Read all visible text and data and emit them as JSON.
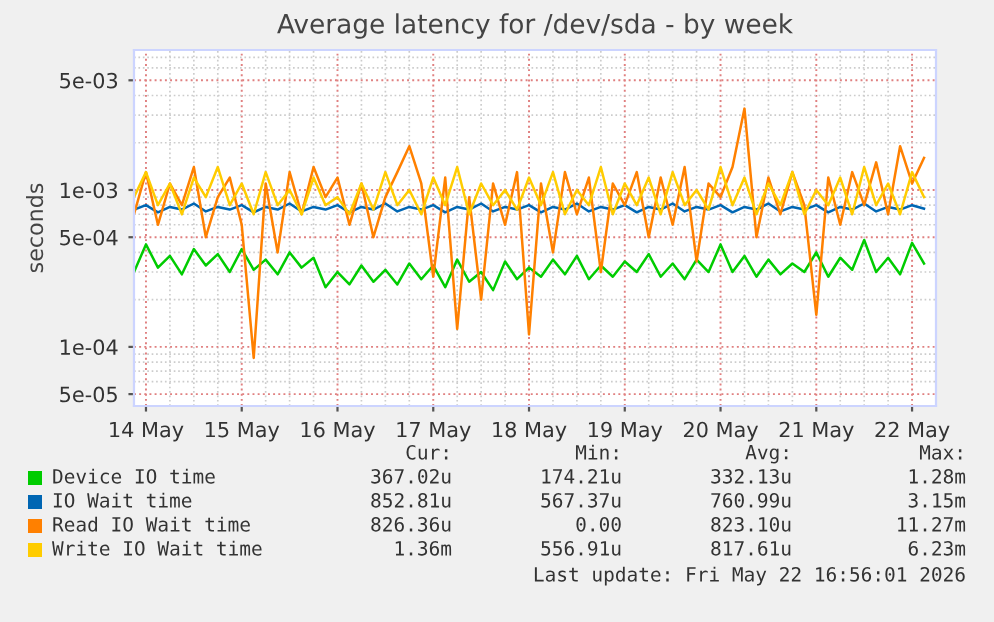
{
  "chart_data": {
    "type": "line",
    "title": "Average latency for /dev/sda - by week",
    "ylabel": "seconds",
    "x": [
      "2026-05-13T21:00",
      "2026-05-14T00:00",
      "2026-05-14T03:00",
      "2026-05-14T06:00",
      "2026-05-14T09:00",
      "2026-05-14T12:00",
      "2026-05-14T15:00",
      "2026-05-14T18:00",
      "2026-05-14T21:00",
      "2026-05-15T00:00",
      "2026-05-15T03:00",
      "2026-05-15T06:00",
      "2026-05-15T09:00",
      "2026-05-15T12:00",
      "2026-05-15T15:00",
      "2026-05-15T18:00",
      "2026-05-15T21:00",
      "2026-05-16T00:00",
      "2026-05-16T03:00",
      "2026-05-16T06:00",
      "2026-05-16T09:00",
      "2026-05-16T12:00",
      "2026-05-16T15:00",
      "2026-05-16T18:00",
      "2026-05-16T21:00",
      "2026-05-17T00:00",
      "2026-05-17T03:00",
      "2026-05-17T06:00",
      "2026-05-17T09:00",
      "2026-05-17T12:00",
      "2026-05-17T15:00",
      "2026-05-17T18:00",
      "2026-05-17T21:00",
      "2026-05-18T00:00",
      "2026-05-18T03:00",
      "2026-05-18T06:00",
      "2026-05-18T09:00",
      "2026-05-18T12:00",
      "2026-05-18T15:00",
      "2026-05-18T18:00",
      "2026-05-18T21:00",
      "2026-05-19T00:00",
      "2026-05-19T03:00",
      "2026-05-19T06:00",
      "2026-05-19T09:00",
      "2026-05-19T12:00",
      "2026-05-19T15:00",
      "2026-05-19T18:00",
      "2026-05-19T21:00",
      "2026-05-20T00:00",
      "2026-05-20T03:00",
      "2026-05-20T06:00",
      "2026-05-20T09:00",
      "2026-05-20T12:00",
      "2026-05-20T15:00",
      "2026-05-20T18:00",
      "2026-05-20T21:00",
      "2026-05-21T00:00",
      "2026-05-21T03:00",
      "2026-05-21T06:00",
      "2026-05-21T09:00",
      "2026-05-21T12:00",
      "2026-05-21T15:00",
      "2026-05-21T18:00",
      "2026-05-21T21:00",
      "2026-05-22T00:00",
      "2026-05-22T03:00"
    ],
    "series": [
      {
        "name": "Device IO time",
        "color": "#00cc00",
        "values": [
          0.0003,
          0.00045,
          0.00032,
          0.00038,
          0.00029,
          0.00042,
          0.00033,
          0.00039,
          0.0003,
          0.00042,
          0.00031,
          0.00036,
          0.00029,
          0.0004,
          0.00032,
          0.00037,
          0.00024,
          0.0003,
          0.00025,
          0.00033,
          0.00026,
          0.00031,
          0.00025,
          0.00034,
          0.00027,
          0.00033,
          0.00024,
          0.00036,
          0.00026,
          0.0003,
          0.00023,
          0.00035,
          0.00027,
          0.00032,
          0.00028,
          0.00036,
          0.00029,
          0.00038,
          0.00027,
          0.00033,
          0.00028,
          0.00035,
          0.0003,
          0.00039,
          0.00028,
          0.00034,
          0.00027,
          0.00036,
          0.0003,
          0.00045,
          0.0003,
          0.00038,
          0.00028,
          0.00036,
          0.00029,
          0.00034,
          0.0003,
          0.0004,
          0.00028,
          0.00037,
          0.00031,
          0.00048,
          0.0003,
          0.00037,
          0.00029,
          0.00046,
          0.00034
        ]
      },
      {
        "name": "IO Wait time",
        "color": "#0066b3",
        "values": [
          0.00075,
          0.0008,
          0.00072,
          0.00078,
          0.00075,
          0.00082,
          0.00073,
          0.00078,
          0.00075,
          0.0008,
          0.00072,
          0.00078,
          0.00075,
          0.00082,
          0.00073,
          0.00078,
          0.00075,
          0.0008,
          0.00072,
          0.00078,
          0.00075,
          0.00082,
          0.00073,
          0.00078,
          0.00075,
          0.0008,
          0.00072,
          0.00078,
          0.00075,
          0.00082,
          0.00073,
          0.00078,
          0.00075,
          0.0008,
          0.00072,
          0.00078,
          0.00075,
          0.00082,
          0.00073,
          0.00078,
          0.00075,
          0.0008,
          0.00072,
          0.00078,
          0.00075,
          0.00082,
          0.00073,
          0.00078,
          0.00075,
          0.0008,
          0.00072,
          0.00078,
          0.00075,
          0.00082,
          0.00073,
          0.00078,
          0.00075,
          0.0008,
          0.00072,
          0.00078,
          0.00075,
          0.00082,
          0.00073,
          0.00078,
          0.00075,
          0.0008,
          0.00076
        ]
      },
      {
        "name": "Read IO Wait time",
        "color": "#ff8000",
        "values": [
          0.0007,
          0.0013,
          0.0006,
          0.0011,
          0.0008,
          0.0014,
          0.0005,
          0.0009,
          0.0012,
          0.0006,
          8.5e-05,
          0.0011,
          0.0004,
          0.0013,
          0.0007,
          0.0014,
          0.0009,
          0.0012,
          0.0006,
          0.0011,
          0.0005,
          0.0009,
          0.0013,
          0.0019,
          0.0011,
          0.00028,
          0.0012,
          0.00013,
          0.0009,
          0.0002,
          0.0011,
          0.0006,
          0.0013,
          0.00012,
          0.0011,
          0.0004,
          0.0013,
          0.0007,
          0.0012,
          0.0003,
          0.0011,
          0.0008,
          0.0013,
          0.0005,
          0.0012,
          0.0006,
          0.0014,
          0.00035,
          0.0011,
          0.0009,
          0.0014,
          0.0033,
          0.0005,
          0.0012,
          0.0007,
          0.0013,
          0.0008,
          0.00016,
          0.0012,
          0.0006,
          0.0013,
          0.0008,
          0.0015,
          0.0007,
          0.0019,
          0.0011,
          0.0016
        ]
      },
      {
        "name": "Write IO Wait time",
        "color": "#ffcc00",
        "values": [
          0.0009,
          0.0013,
          0.0008,
          0.0011,
          0.0007,
          0.0012,
          0.0009,
          0.0014,
          0.0008,
          0.0011,
          0.0007,
          0.0013,
          0.0008,
          0.001,
          0.0007,
          0.0012,
          0.0008,
          0.0009,
          0.0007,
          0.0011,
          0.00075,
          0.0013,
          0.0008,
          0.001,
          0.0007,
          0.0012,
          0.0008,
          0.0014,
          0.0007,
          0.0011,
          0.0008,
          0.001,
          0.00075,
          0.0012,
          0.0008,
          0.0013,
          0.0007,
          0.001,
          0.0008,
          0.0014,
          0.0007,
          0.0011,
          0.0008,
          0.0012,
          0.0007,
          0.0013,
          0.0008,
          0.001,
          0.00075,
          0.0014,
          0.0008,
          0.0012,
          0.0007,
          0.0011,
          0.0008,
          0.0013,
          0.0007,
          0.001,
          0.0008,
          0.0012,
          0.0007,
          0.0014,
          0.0008,
          0.0011,
          0.0007,
          0.0013,
          0.0009
        ]
      }
    ],
    "log": "y",
    "ylim": [
      4.2e-05,
      0.0078
    ],
    "yticks": [
      {
        "value": 5e-05,
        "label": "5e-05"
      },
      {
        "value": 0.0001,
        "label": "1e-04"
      },
      {
        "value": 0.0005,
        "label": "5e-04"
      },
      {
        "value": 0.001,
        "label": "1e-03"
      },
      {
        "value": 0.005,
        "label": "5e-03"
      }
    ],
    "xlim": [
      "2026-05-13T21:00",
      "2026-05-22T06:00"
    ],
    "xticks": [
      {
        "value": "2026-05-14",
        "label": "14 May"
      },
      {
        "value": "2026-05-15",
        "label": "15 May"
      },
      {
        "value": "2026-05-16",
        "label": "16 May"
      },
      {
        "value": "2026-05-17",
        "label": "17 May"
      },
      {
        "value": "2026-05-18",
        "label": "18 May"
      },
      {
        "value": "2026-05-19",
        "label": "19 May"
      },
      {
        "value": "2026-05-20",
        "label": "20 May"
      },
      {
        "value": "2026-05-21",
        "label": "21 May"
      },
      {
        "value": "2026-05-22",
        "label": "22 May"
      }
    ],
    "grid": true,
    "legend": "bottom",
    "marker": "none",
    "line_style": "solid",
    "annotations": [
      "Cur:",
      "Min:",
      "Avg:",
      "Max:",
      "367.02u",
      "174.21u",
      "332.13u",
      "1.28m",
      "852.81u",
      "567.37u",
      "760.99u",
      "3.15m",
      "826.36u",
      "0.00",
      "823.10u",
      "11.27m",
      "1.36m",
      "556.91u",
      "817.61u",
      "6.23m",
      "Last update: Fri May 22 16:56:01 2026"
    ]
  }
}
